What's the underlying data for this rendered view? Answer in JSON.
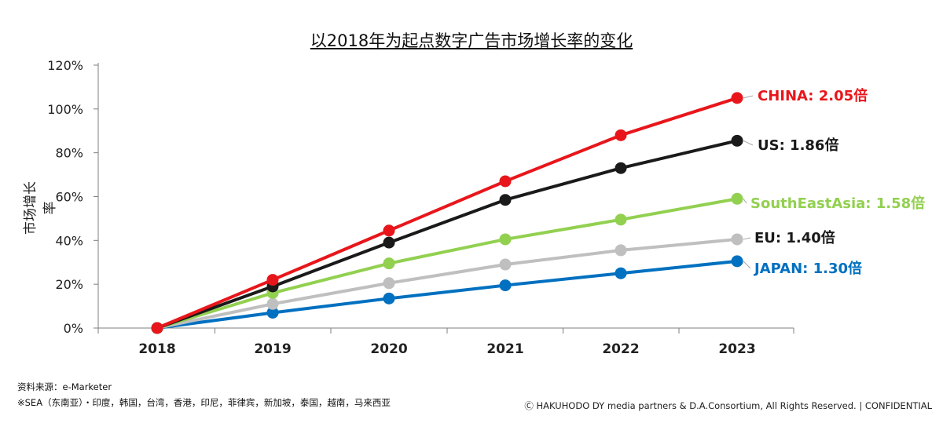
{
  "chart_data": {
    "type": "line",
    "title": "以2018年为起点数字广告市场增长率的变化",
    "ylabel": "市场增长率",
    "xlabel": "",
    "x": [
      "2018",
      "2019",
      "2020",
      "2021",
      "2022",
      "2023"
    ],
    "ylim": [
      0,
      120
    ],
    "yticks": [
      "0%",
      "20%",
      "40%",
      "60%",
      "80%",
      "100%",
      "120%"
    ],
    "series": [
      {
        "name": "CHINA",
        "label": "CHINA: 2.05倍",
        "color": "#e8161b",
        "values": [
          0,
          22,
          44.5,
          67,
          88,
          105
        ]
      },
      {
        "name": "US",
        "label": "US: 1.86倍",
        "color": "#1a1a1a",
        "values": [
          0,
          19,
          39,
          58.5,
          73,
          85.5
        ]
      },
      {
        "name": "SouthEastAsia",
        "label": "SouthEastAsia: 1.58倍",
        "color": "#92d050",
        "values": [
          0,
          16,
          29.5,
          40.5,
          49.5,
          59
        ]
      },
      {
        "name": "EU",
        "label": "EU: 1.40倍",
        "color": "#bfbfbf",
        "values": [
          0,
          11,
          20.5,
          29,
          35.5,
          40.5
        ]
      },
      {
        "name": "JAPAN",
        "label": "JAPAN: 1.30倍",
        "color": "#0070c0",
        "values": [
          0,
          7,
          13.5,
          19.5,
          25,
          30.5
        ]
      }
    ]
  },
  "notes": {
    "source": "资料来源：e-Marketer",
    "sea": "※SEA（东南亚）・印度，韩国，台湾，香港，印尼，菲律宾，新加坡，泰国，越南，马来西亚"
  },
  "copyright": "Ⓒ HAKUHODO DY media partners & D.A.Consortium, All  Rights  Reserved. | CONFIDENTIAL"
}
